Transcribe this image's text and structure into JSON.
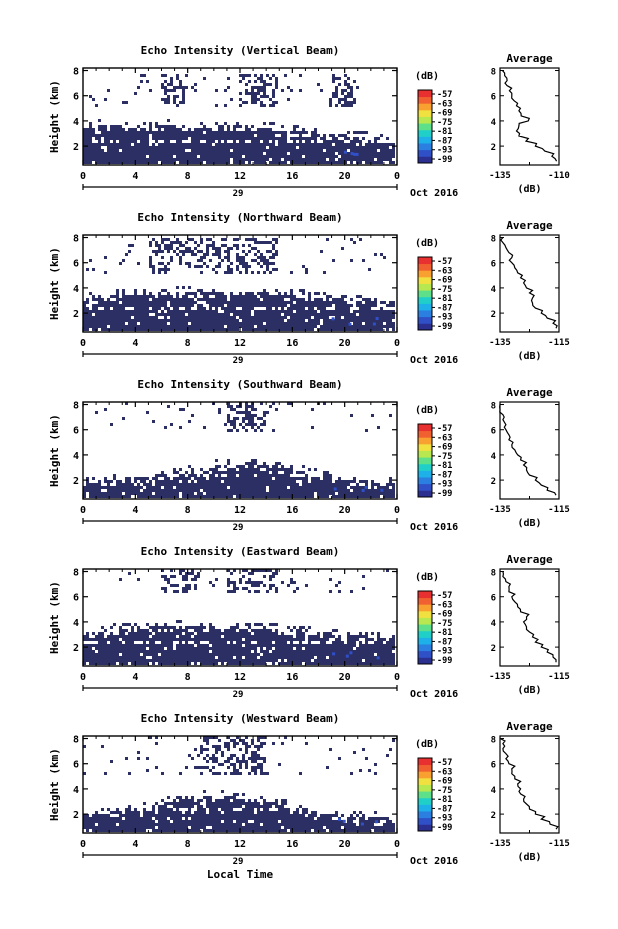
{
  "figure": {
    "bottom_xlabel": "Local Time",
    "colorbar_unit": "(dB)",
    "colorbar_ticks": [
      "-57",
      "-63",
      "-69",
      "-75",
      "-81",
      "-87",
      "-93",
      "-99"
    ],
    "colormap": [
      "#2b2f8f",
      "#3050c8",
      "#2a7fe0",
      "#1eb0e8",
      "#20d0c8",
      "#5ee08a",
      "#b8e850",
      "#f0e040",
      "#f8a030",
      "#f06030",
      "#e83030"
    ],
    "mask_color": "#2b2f63",
    "background": "#ffffff"
  },
  "chart_data": [
    {
      "type": "heatmap",
      "title": "Echo Intensity (Vertical Beam)",
      "ylabel": "Height (km)",
      "x_ticks": [
        "0",
        "4",
        "8",
        "12",
        "16",
        "20",
        "0"
      ],
      "x_range": [
        0,
        24
      ],
      "y_ticks": [
        "2",
        "4",
        "6",
        "8"
      ],
      "y_range": [
        0.5,
        8.2
      ],
      "date_label": "29",
      "month_label": "Oct 2016",
      "colorbar_unit": "(dB)",
      "colorbar_ticks": [
        "-57",
        "-63",
        "-69",
        "-75",
        "-81",
        "-87",
        "-93",
        "-99"
      ],
      "lower_echo_top_km": [
        3.6,
        3.7,
        3.6,
        3.5,
        3.5,
        3.6,
        3.7,
        3.6,
        3.5,
        3.4,
        3.5,
        3.6,
        3.6,
        3.5,
        3.4,
        3.3,
        3.2,
        3.1,
        3.0,
        2.9,
        2.8,
        2.8,
        2.7,
        2.6,
        2.6
      ],
      "upper_echo_band_km": [
        5.2,
        7.8
      ],
      "upper_echo_hours": [
        [
          6,
          8
        ],
        [
          12,
          15
        ],
        [
          19,
          21
        ]
      ],
      "average_profile": {
        "title": "Average",
        "xlabel": "(dB)",
        "x_ticks": [
          "-135",
          "-110"
        ],
        "x_range": [
          -135,
          -110
        ],
        "y_ticks": [
          "2",
          "4",
          "6",
          "8"
        ],
        "y_range": [
          0.5,
          8.2
        ],
        "heights_km": [
          0.8,
          1.2,
          1.6,
          2.0,
          2.4,
          2.8,
          3.2,
          3.6,
          4.0,
          4.4,
          4.8,
          5.2,
          5.6,
          6.0,
          6.4,
          6.8,
          7.2,
          7.6,
          8.0
        ],
        "values_db": [
          -111,
          -113,
          -116,
          -120,
          -124,
          -127,
          -128,
          -127,
          -123,
          -126,
          -127,
          -128,
          -129,
          -130,
          -131,
          -132,
          -132,
          -133,
          -134
        ]
      }
    },
    {
      "type": "heatmap",
      "title": "Echo Intensity (Northward Beam)",
      "ylabel": "Height (km)",
      "x_ticks": [
        "0",
        "4",
        "8",
        "12",
        "16",
        "20",
        "0"
      ],
      "x_range": [
        0,
        24
      ],
      "y_ticks": [
        "2",
        "4",
        "6",
        "8"
      ],
      "y_range": [
        0.5,
        8.2
      ],
      "date_label": "29",
      "month_label": "Oct 2016",
      "colorbar_unit": "(dB)",
      "colorbar_ticks": [
        "-57",
        "-63",
        "-69",
        "-75",
        "-81",
        "-87",
        "-93",
        "-99"
      ],
      "lower_echo_top_km": [
        3.2,
        3.3,
        3.4,
        3.4,
        3.5,
        3.6,
        3.6,
        3.7,
        3.7,
        3.6,
        3.6,
        3.5,
        3.6,
        3.6,
        3.5,
        3.4,
        3.4,
        3.3,
        3.2,
        3.1,
        3.0,
        3.0,
        2.9,
        2.9,
        2.8
      ],
      "upper_echo_band_km": [
        5.0,
        8.0
      ],
      "upper_echo_hours": [
        [
          5,
          8
        ],
        [
          8,
          12
        ],
        [
          12,
          15
        ]
      ],
      "average_profile": {
        "title": "Average",
        "xlabel": "(dB)",
        "x_ticks": [
          "-135",
          "-115"
        ],
        "x_range": [
          -135,
          -115
        ],
        "y_ticks": [
          "2",
          "4",
          "6",
          "8"
        ],
        "y_range": [
          0.5,
          8.2
        ],
        "heights_km": [
          0.8,
          1.2,
          1.6,
          2.0,
          2.4,
          2.8,
          3.2,
          3.6,
          4.0,
          4.4,
          4.8,
          5.2,
          5.6,
          6.0,
          6.4,
          6.8,
          7.2,
          7.6,
          8.0
        ],
        "values_db": [
          -116,
          -117,
          -119,
          -121,
          -123,
          -124,
          -124,
          -125,
          -126,
          -127,
          -128,
          -129,
          -130,
          -131,
          -131,
          -132,
          -133,
          -134,
          -134
        ]
      }
    },
    {
      "type": "heatmap",
      "title": "Echo Intensity (Southward Beam)",
      "ylabel": "Height (km)",
      "x_ticks": [
        "0",
        "4",
        "8",
        "12",
        "16",
        "20",
        "0"
      ],
      "x_range": [
        0,
        24
      ],
      "y_ticks": [
        "2",
        "4",
        "6",
        "8"
      ],
      "y_range": [
        0.5,
        8.2
      ],
      "date_label": "29",
      "month_label": "Oct 2016",
      "colorbar_unit": "(dB)",
      "colorbar_ticks": [
        "-57",
        "-63",
        "-69",
        "-75",
        "-81",
        "-87",
        "-93",
        "-99"
      ],
      "lower_echo_top_km": [
        1.8,
        1.9,
        2.0,
        2.1,
        2.2,
        2.3,
        2.4,
        2.5,
        2.7,
        3.0,
        3.2,
        3.3,
        3.3,
        3.2,
        3.1,
        3.0,
        2.8,
        2.5,
        2.3,
        2.1,
        2.0,
        1.9,
        1.8,
        1.8,
        1.7
      ],
      "upper_echo_band_km": [
        5.8,
        8.2
      ],
      "upper_echo_hours": [
        [
          11,
          14
        ]
      ],
      "average_profile": {
        "title": "Average",
        "xlabel": "(dB)",
        "x_ticks": [
          "-135",
          "-115"
        ],
        "x_range": [
          -135,
          -115
        ],
        "y_ticks": [
          "2",
          "4",
          "6",
          "8"
        ],
        "y_range": [
          0.5,
          8.2
        ],
        "heights_km": [
          0.8,
          1.2,
          1.6,
          2.0,
          2.4,
          2.8,
          3.2,
          3.6,
          4.0,
          4.4,
          4.8,
          5.2,
          5.6,
          6.0,
          6.4,
          6.8,
          7.2,
          7.6,
          8.0
        ],
        "values_db": [
          -116,
          -119,
          -121,
          -123,
          -125,
          -126,
          -127,
          -128,
          -129,
          -130,
          -131,
          -132,
          -132,
          -133,
          -133,
          -134,
          -134,
          -135,
          -135
        ]
      }
    },
    {
      "type": "heatmap",
      "title": "Echo Intensity (Eastward Beam)",
      "ylabel": "Height (km)",
      "x_ticks": [
        "0",
        "4",
        "8",
        "12",
        "16",
        "20",
        "0"
      ],
      "x_range": [
        0,
        24
      ],
      "y_ticks": [
        "2",
        "4",
        "6",
        "8"
      ],
      "y_range": [
        0.5,
        8.2
      ],
      "date_label": "29",
      "month_label": "Oct 2016",
      "colorbar_unit": "(dB)",
      "colorbar_ticks": [
        "-57",
        "-63",
        "-69",
        "-75",
        "-81",
        "-87",
        "-93",
        "-99"
      ],
      "lower_echo_top_km": [
        3.2,
        3.3,
        3.4,
        3.4,
        3.5,
        3.6,
        3.6,
        3.7,
        3.6,
        3.5,
        3.5,
        3.6,
        3.6,
        3.5,
        3.4,
        3.3,
        3.3,
        3.2,
        3.1,
        3.0,
        2.9,
        2.9,
        2.8,
        2.8,
        2.7
      ],
      "upper_echo_band_km": [
        6.4,
        8.2
      ],
      "upper_echo_hours": [
        [
          6,
          9
        ],
        [
          11,
          15
        ]
      ],
      "average_profile": {
        "title": "Average",
        "xlabel": "(dB)",
        "x_ticks": [
          "-135",
          "-115"
        ],
        "x_range": [
          -135,
          -115
        ],
        "y_ticks": [
          "2",
          "4",
          "6",
          "8"
        ],
        "y_range": [
          0.5,
          8.2
        ],
        "heights_km": [
          0.8,
          1.2,
          1.6,
          2.0,
          2.4,
          2.8,
          3.2,
          3.6,
          4.0,
          4.4,
          4.8,
          5.2,
          5.6,
          6.0,
          6.4,
          6.8,
          7.2,
          7.6,
          8.0
        ],
        "values_db": [
          -116,
          -117,
          -119,
          -121,
          -123,
          -124,
          -125,
          -126,
          -127,
          -126,
          -128,
          -129,
          -130,
          -131,
          -132,
          -132,
          -133,
          -134,
          -134
        ]
      }
    },
    {
      "type": "heatmap",
      "title": "Echo Intensity (Westward Beam)",
      "ylabel": "Height (km)",
      "x_ticks": [
        "0",
        "4",
        "8",
        "12",
        "16",
        "20",
        "0"
      ],
      "x_range": [
        0,
        24
      ],
      "y_ticks": [
        "2",
        "4",
        "6",
        "8"
      ],
      "y_range": [
        0.5,
        8.2
      ],
      "date_label": "29",
      "month_label": "Oct 2016",
      "colorbar_unit": "(dB)",
      "colorbar_ticks": [
        "-57",
        "-63",
        "-69",
        "-75",
        "-81",
        "-87",
        "-93",
        "-99"
      ],
      "lower_echo_top_km": [
        1.9,
        2.0,
        2.2,
        2.4,
        2.6,
        2.8,
        3.0,
        3.2,
        3.3,
        3.4,
        3.4,
        3.4,
        3.3,
        3.2,
        3.0,
        2.8,
        2.4,
        2.2,
        2.0,
        1.9,
        1.8,
        1.8,
        1.8,
        1.7,
        1.7
      ],
      "upper_echo_band_km": [
        5.2,
        8.2
      ],
      "upper_echo_hours": [
        [
          9,
          14
        ]
      ],
      "average_profile": {
        "title": "Average",
        "xlabel": "(dB)",
        "x_ticks": [
          "-135",
          "-115"
        ],
        "x_range": [
          -135,
          -115
        ],
        "y_ticks": [
          "2",
          "4",
          "6",
          "8"
        ],
        "y_range": [
          0.5,
          8.2
        ],
        "heights_km": [
          0.8,
          1.2,
          1.6,
          2.0,
          2.4,
          2.8,
          3.2,
          3.6,
          4.0,
          4.4,
          4.8,
          5.2,
          5.6,
          6.0,
          6.4,
          6.8,
          7.2,
          7.6,
          8.0
        ],
        "values_db": [
          -116,
          -118,
          -121,
          -123,
          -125,
          -126,
          -127,
          -128,
          -128,
          -129,
          -130,
          -131,
          -131,
          -132,
          -133,
          -133,
          -134,
          -134,
          -135
        ]
      }
    }
  ]
}
